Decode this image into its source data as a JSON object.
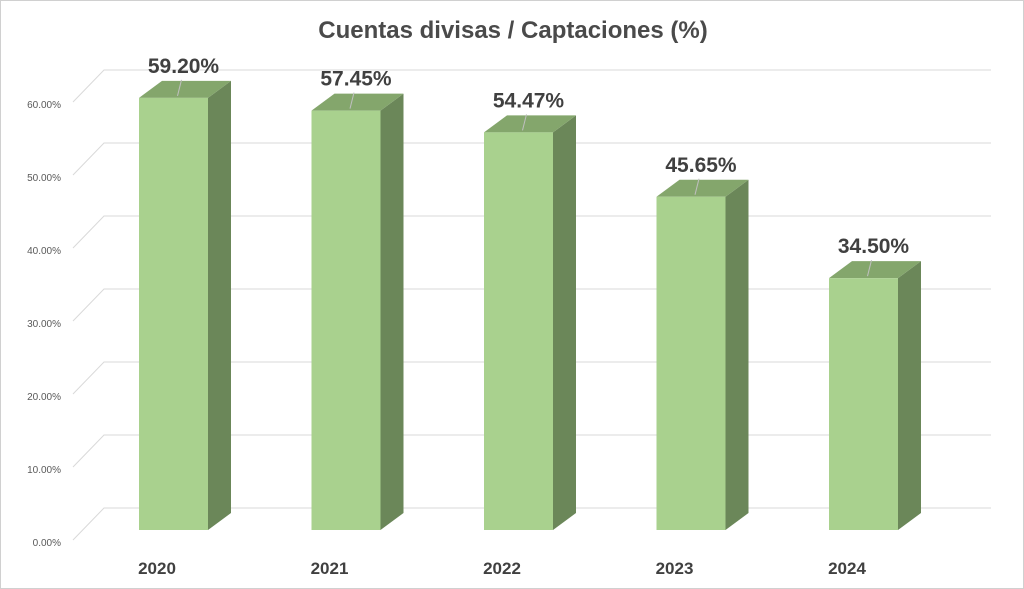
{
  "chart_data": {
    "type": "bar",
    "title": "Cuentas divisas / Captaciones (%)",
    "categories": [
      "2020",
      "2021",
      "2022",
      "2023",
      "2024"
    ],
    "values": [
      59.2,
      57.45,
      54.47,
      45.65,
      34.5
    ],
    "data_labels": [
      "59.20%",
      "57.45%",
      "54.47%",
      "45.65%",
      "34.50%"
    ],
    "y_ticks": [
      "0.00%",
      "10.00%",
      "20.00%",
      "30.00%",
      "40.00%",
      "50.00%",
      "60.00%"
    ],
    "ylim": [
      0,
      60
    ],
    "xlabel": "",
    "ylabel": "",
    "grid": true,
    "legend": "none",
    "three_d": true,
    "colors": {
      "front": "#a9d18e",
      "side": "#6b8759",
      "top": "#84a66c",
      "grid": "#d9d9d9"
    }
  }
}
